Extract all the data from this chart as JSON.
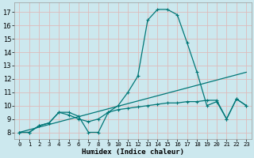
{
  "xlabel": "Humidex (Indice chaleur)",
  "bg_color": "#cce8ee",
  "grid_color": "#ddbbbb",
  "line_color": "#007777",
  "line1_x": [
    0,
    1,
    2,
    3,
    4,
    5,
    6,
    7,
    8,
    9,
    10,
    11,
    12,
    13,
    14,
    15,
    16,
    17,
    18,
    19,
    20,
    21,
    22,
    23
  ],
  "line1_y": [
    8.0,
    8.0,
    8.5,
    8.7,
    9.5,
    9.5,
    9.2,
    8.0,
    8.0,
    9.5,
    10.0,
    11.0,
    12.2,
    16.4,
    17.2,
    17.2,
    16.8,
    14.7,
    12.5,
    10.0,
    10.3,
    9.0,
    10.5,
    10.0
  ],
  "line2_x": [
    0,
    1,
    2,
    3,
    4,
    5,
    6,
    7,
    8,
    9,
    10,
    11,
    12,
    13,
    14,
    15,
    16,
    17,
    18,
    19,
    20,
    21,
    22,
    23
  ],
  "line2_y": [
    8.0,
    8.0,
    8.5,
    8.7,
    9.5,
    9.3,
    9.0,
    8.8,
    9.0,
    9.5,
    9.7,
    9.8,
    9.9,
    10.0,
    10.1,
    10.2,
    10.2,
    10.3,
    10.3,
    10.4,
    10.4,
    9.0,
    10.5,
    10.0
  ],
  "line3_x": [
    0,
    23
  ],
  "line3_y": [
    8.0,
    12.5
  ],
  "xlim": [
    -0.5,
    23.5
  ],
  "ylim": [
    7.5,
    17.7
  ],
  "xticks": [
    0,
    1,
    2,
    3,
    4,
    5,
    6,
    7,
    8,
    9,
    10,
    11,
    12,
    13,
    14,
    15,
    16,
    17,
    18,
    19,
    20,
    21,
    22,
    23
  ],
  "yticks": [
    8,
    9,
    10,
    11,
    12,
    13,
    14,
    15,
    16,
    17
  ]
}
